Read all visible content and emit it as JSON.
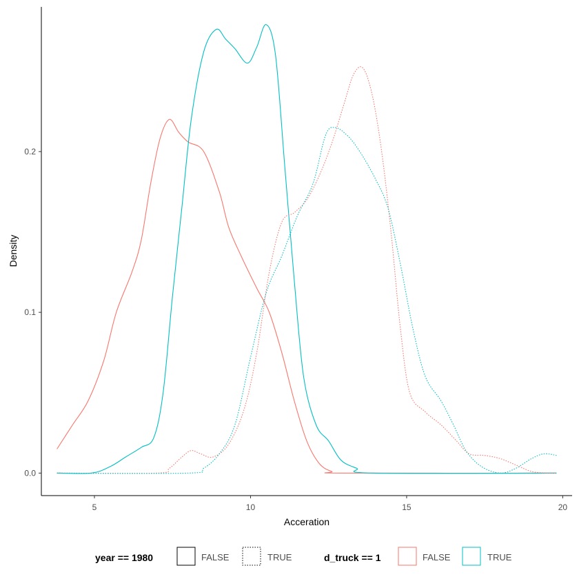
{
  "chart_data": {
    "type": "line",
    "xlabel": "Acceration",
    "ylabel": "Density",
    "xlim": [
      3.3,
      20.3
    ],
    "ylim": [
      -0.014,
      0.29
    ],
    "x_ticks": [
      5,
      10,
      15,
      20
    ],
    "y_ticks": [
      0.0,
      0.1,
      0.2
    ],
    "y_tick_labels": [
      "0.0",
      "0.1",
      "0.2"
    ],
    "grid": false,
    "legend_position": "bottom",
    "colors": {
      "FALSE": "#F8766D",
      "TRUE": "#00BFC4",
      "legend_linetype_key": "#000000"
    },
    "legend": [
      {
        "title": "year == 1980",
        "aesthetic": "linetype",
        "items": [
          {
            "label": "FALSE",
            "style": "solid"
          },
          {
            "label": "TRUE",
            "style": "dotted"
          }
        ]
      },
      {
        "title": "d_truck == 1",
        "aesthetic": "colour",
        "items": [
          {
            "label": "FALSE",
            "color": "#F8766D"
          },
          {
            "label": "TRUE",
            "color": "#00BFC4"
          }
        ]
      }
    ],
    "series": [
      {
        "year_1980": "FALSE",
        "d_truck": "FALSE",
        "color": "#F8766D",
        "style": "solid",
        "points": [
          [
            3.8,
            0.015
          ],
          [
            4.3,
            0.03
          ],
          [
            4.8,
            0.045
          ],
          [
            5.3,
            0.07
          ],
          [
            5.7,
            0.1
          ],
          [
            6.2,
            0.125
          ],
          [
            6.5,
            0.145
          ],
          [
            6.8,
            0.18
          ],
          [
            7.1,
            0.208
          ],
          [
            7.4,
            0.22
          ],
          [
            7.7,
            0.212
          ],
          [
            8.0,
            0.206
          ],
          [
            8.5,
            0.2
          ],
          [
            9.0,
            0.175
          ],
          [
            9.3,
            0.153
          ],
          [
            9.7,
            0.135
          ],
          [
            10.2,
            0.115
          ],
          [
            10.6,
            0.1
          ],
          [
            11.0,
            0.075
          ],
          [
            11.4,
            0.045
          ],
          [
            11.8,
            0.02
          ],
          [
            12.2,
            0.006
          ],
          [
            12.6,
            0.001
          ],
          [
            13.0,
            0.0
          ],
          [
            19.8,
            0.0
          ]
        ]
      },
      {
        "year_1980": "FALSE",
        "d_truck": "TRUE",
        "color": "#00BFC4",
        "style": "solid",
        "points": [
          [
            3.8,
            0.0
          ],
          [
            4.9,
            0.0
          ],
          [
            5.5,
            0.004
          ],
          [
            6.0,
            0.01
          ],
          [
            6.5,
            0.016
          ],
          [
            6.9,
            0.022
          ],
          [
            7.2,
            0.05
          ],
          [
            7.5,
            0.11
          ],
          [
            7.8,
            0.165
          ],
          [
            8.1,
            0.22
          ],
          [
            8.5,
            0.262
          ],
          [
            8.9,
            0.276
          ],
          [
            9.2,
            0.27
          ],
          [
            9.5,
            0.264
          ],
          [
            9.9,
            0.255
          ],
          [
            10.2,
            0.265
          ],
          [
            10.5,
            0.279
          ],
          [
            10.8,
            0.26
          ],
          [
            11.1,
            0.19
          ],
          [
            11.4,
            0.12
          ],
          [
            11.7,
            0.06
          ],
          [
            12.1,
            0.03
          ],
          [
            12.5,
            0.02
          ],
          [
            12.9,
            0.008
          ],
          [
            13.4,
            0.003
          ],
          [
            13.9,
            0.0
          ],
          [
            19.8,
            0.0
          ]
        ]
      },
      {
        "year_1980": "TRUE",
        "d_truck": "FALSE",
        "color": "#F8766D",
        "style": "dotted",
        "points": [
          [
            3.8,
            0.0
          ],
          [
            7.0,
            0.0
          ],
          [
            7.4,
            0.003
          ],
          [
            7.8,
            0.01
          ],
          [
            8.1,
            0.014
          ],
          [
            8.4,
            0.012
          ],
          [
            8.8,
            0.01
          ],
          [
            9.3,
            0.018
          ],
          [
            9.8,
            0.04
          ],
          [
            10.2,
            0.075
          ],
          [
            10.6,
            0.125
          ],
          [
            11.0,
            0.156
          ],
          [
            11.4,
            0.162
          ],
          [
            11.8,
            0.17
          ],
          [
            12.2,
            0.185
          ],
          [
            12.6,
            0.205
          ],
          [
            13.0,
            0.23
          ],
          [
            13.3,
            0.248
          ],
          [
            13.6,
            0.252
          ],
          [
            13.9,
            0.235
          ],
          [
            14.2,
            0.2
          ],
          [
            14.5,
            0.15
          ],
          [
            14.8,
            0.09
          ],
          [
            15.1,
            0.05
          ],
          [
            15.6,
            0.038
          ],
          [
            16.1,
            0.03
          ],
          [
            16.6,
            0.02
          ],
          [
            17.0,
            0.012
          ],
          [
            17.5,
            0.011
          ],
          [
            18.0,
            0.009
          ],
          [
            18.5,
            0.005
          ],
          [
            19.0,
            0.001
          ],
          [
            19.5,
            0.0
          ],
          [
            19.8,
            0.0
          ]
        ]
      },
      {
        "year_1980": "TRUE",
        "d_truck": "TRUE",
        "color": "#00BFC4",
        "style": "dotted",
        "points": [
          [
            3.8,
            0.0
          ],
          [
            8.0,
            0.0
          ],
          [
            8.5,
            0.003
          ],
          [
            9.0,
            0.012
          ],
          [
            9.5,
            0.03
          ],
          [
            10.0,
            0.072
          ],
          [
            10.5,
            0.112
          ],
          [
            11.0,
            0.135
          ],
          [
            11.5,
            0.16
          ],
          [
            12.0,
            0.18
          ],
          [
            12.4,
            0.21
          ],
          [
            12.7,
            0.215
          ],
          [
            13.1,
            0.21
          ],
          [
            13.5,
            0.2
          ],
          [
            14.0,
            0.183
          ],
          [
            14.4,
            0.165
          ],
          [
            14.8,
            0.13
          ],
          [
            15.2,
            0.09
          ],
          [
            15.6,
            0.06
          ],
          [
            16.1,
            0.045
          ],
          [
            16.5,
            0.03
          ],
          [
            16.9,
            0.014
          ],
          [
            17.4,
            0.004
          ],
          [
            18.0,
            0.0
          ],
          [
            18.5,
            0.003
          ],
          [
            19.0,
            0.009
          ],
          [
            19.4,
            0.012
          ],
          [
            19.8,
            0.011
          ]
        ]
      }
    ]
  }
}
